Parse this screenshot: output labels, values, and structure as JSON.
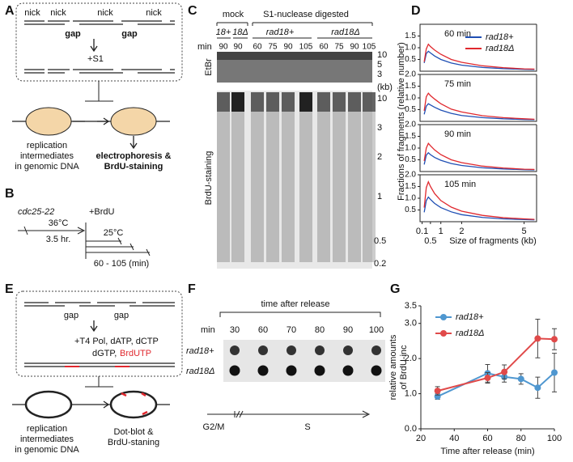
{
  "panel_labels": [
    "A",
    "B",
    "C",
    "D",
    "E",
    "F",
    "G"
  ],
  "panel_a": {
    "nicks": [
      "nick",
      "nick",
      "nick",
      "nick"
    ],
    "gaps": [
      "gap",
      "gap"
    ],
    "treatment": "+S1",
    "left_caption": [
      "replication",
      "intermediates",
      "in genomic DNA"
    ],
    "right_caption": [
      "electrophoresis &",
      "BrdU-staining"
    ]
  },
  "panel_b": {
    "strain": "cdc25-22",
    "brdu": "+BrdU",
    "temp1": "36°C",
    "duration": "3.5 hr.",
    "temp2": "25°C",
    "range": "60 - 105 (min)"
  },
  "panel_c": {
    "mock": "mock",
    "digested": "S1-nuclease digested",
    "groups": [
      "18+",
      "18Δ",
      "rad18+",
      "rad18Δ"
    ],
    "min": "min",
    "lanes": [
      "90",
      "90",
      "60",
      "75",
      "90",
      "105",
      "60",
      "75",
      "90",
      "105"
    ],
    "etbr": "EtBr",
    "brdu": "BrdU-staining",
    "etbr_sizes": [
      "10",
      "5",
      "3"
    ],
    "kb": "(kb)",
    "brdu_sizes": [
      "10",
      "3",
      "2",
      "1",
      "0.5",
      "0.2"
    ]
  },
  "panel_e": {
    "gaps": [
      "gap",
      "gap"
    ],
    "reagents": "+T4 Pol, dATP, dCTP",
    "reagents2": "dGTP,",
    "brdutp": "BrdUTP",
    "left_caption": [
      "replication",
      "intermediates",
      "in genomic DNA"
    ],
    "right_caption": [
      "Dot-blot &",
      "BrdU-staning"
    ]
  },
  "panel_f": {
    "header": "time after release",
    "min": "min",
    "times": [
      "30",
      "60",
      "70",
      "80",
      "90",
      "100"
    ],
    "rows": [
      "rad18+",
      "rad18Δ"
    ],
    "g2m": "G2/M",
    "s": "S"
  },
  "chart_data": [
    {
      "type": "line",
      "title": "60 min",
      "y_label": "Fractions of fragments (relative number)",
      "x": [
        0.2,
        0.3,
        0.4,
        0.5,
        0.7,
        1,
        1.5,
        2,
        3,
        4,
        5,
        5.5
      ],
      "xlim": [
        0,
        5.6
      ],
      "ylim": [
        0,
        2
      ],
      "yticks": [
        0.5,
        {
          "value": 1,
          "label": "1.0"
        },
        1.5
      ],
      "series": [
        {
          "name": "rad18+",
          "color": "#1f4fb4",
          "values": [
            0.35,
            0.75,
            0.85,
            0.78,
            0.65,
            0.5,
            0.35,
            0.26,
            0.16,
            0.11,
            0.08,
            0.07
          ]
        },
        {
          "name": "rad18Δ",
          "color": "#e0282e",
          "values": [
            0.4,
            0.95,
            1.15,
            1.05,
            0.9,
            0.72,
            0.5,
            0.38,
            0.23,
            0.15,
            0.1,
            0.09
          ]
        }
      ]
    },
    {
      "type": "line",
      "title": "75 min",
      "x": [
        0.2,
        0.3,
        0.4,
        0.5,
        0.7,
        1,
        1.5,
        2,
        3,
        4,
        5,
        5.5
      ],
      "xlim": [
        0,
        5.6
      ],
      "ylim": [
        0,
        2
      ],
      "yticks": [
        0.5,
        {
          "value": 1,
          "label": "1.0"
        },
        1.5,
        {
          "value": 2,
          "label": "2.0"
        }
      ],
      "series": [
        {
          "color": "#1f4fb4",
          "values": [
            0.3,
            0.65,
            0.75,
            0.7,
            0.6,
            0.48,
            0.34,
            0.25,
            0.16,
            0.11,
            0.08,
            0.07
          ]
        },
        {
          "color": "#e0282e",
          "values": [
            0.45,
            1.05,
            1.2,
            1.1,
            0.95,
            0.75,
            0.52,
            0.4,
            0.24,
            0.16,
            0.11,
            0.09
          ]
        }
      ]
    },
    {
      "type": "line",
      "title": "90 min",
      "x": [
        0.2,
        0.3,
        0.4,
        0.5,
        0.7,
        1,
        1.5,
        2,
        3,
        4,
        5,
        5.5
      ],
      "xlim": [
        0,
        5.6
      ],
      "ylim": [
        0,
        2
      ],
      "yticks": [
        0.5,
        {
          "value": 1,
          "label": "1.0"
        },
        1.5,
        {
          "value": 2,
          "label": "2.0"
        }
      ],
      "series": [
        {
          "color": "#1f4fb4",
          "values": [
            0.3,
            0.7,
            0.8,
            0.72,
            0.6,
            0.48,
            0.34,
            0.26,
            0.16,
            0.11,
            0.08,
            0.07
          ]
        },
        {
          "color": "#e0282e",
          "values": [
            0.45,
            1.0,
            1.2,
            1.1,
            0.92,
            0.72,
            0.5,
            0.38,
            0.23,
            0.15,
            0.1,
            0.09
          ]
        }
      ]
    },
    {
      "type": "line",
      "title": "105 min",
      "x_label": "Size of fragments (kb)",
      "x": [
        0.2,
        0.3,
        0.4,
        0.5,
        0.7,
        1,
        1.5,
        2,
        3,
        4,
        5,
        5.5
      ],
      "xlim": [
        0,
        5.6
      ],
      "xticks": [
        0.1,
        0.5,
        1,
        2,
        5
      ],
      "ylim": [
        0,
        2
      ],
      "yticks": [
        0.5,
        {
          "value": 1,
          "label": "1.0"
        },
        1.5,
        {
          "value": 2,
          "label": "2.0"
        }
      ],
      "series": [
        {
          "color": "#1f4fb4",
          "values": [
            0.4,
            0.9,
            1.05,
            0.95,
            0.78,
            0.6,
            0.42,
            0.3,
            0.18,
            0.12,
            0.09,
            0.08
          ]
        },
        {
          "color": "#e0282e",
          "values": [
            0.6,
            1.45,
            1.7,
            1.5,
            1.2,
            0.9,
            0.62,
            0.45,
            0.27,
            0.17,
            0.12,
            0.1
          ]
        }
      ]
    },
    {
      "type": "errorline",
      "y_label": [
        "relative amounts",
        "of BrdU-inc"
      ],
      "x_label": "Time after release (min)",
      "xlim": [
        20,
        100
      ],
      "xticks": [
        20,
        40,
        60,
        80,
        100
      ],
      "ylim": [
        0,
        3.5
      ],
      "yticks": [
        {
          "value": 0,
          "label": "0.0"
        },
        {
          "value": 1,
          "label": "1.0"
        },
        {
          "value": 2,
          "label": "2.0"
        },
        {
          "value": 3,
          "label": "3.0"
        },
        3.5
      ],
      "series": [
        {
          "name": "rad18+",
          "color": "#4f97d0",
          "x": [
            30,
            60,
            70,
            80,
            90,
            100
          ],
          "values": [
            0.92,
            1.58,
            1.48,
            1.42,
            1.17,
            1.6
          ],
          "errors": [
            0.08,
            0.25,
            0.15,
            0.15,
            0.3,
            0.55
          ]
        },
        {
          "name": "rad18Δ",
          "color": "#e04a4a",
          "x": [
            30,
            60,
            70,
            90,
            100
          ],
          "values": [
            1.08,
            1.45,
            1.62,
            2.57,
            2.55
          ],
          "errors": [
            0.12,
            0.15,
            0.2,
            0.55,
            0.3
          ]
        }
      ]
    }
  ]
}
